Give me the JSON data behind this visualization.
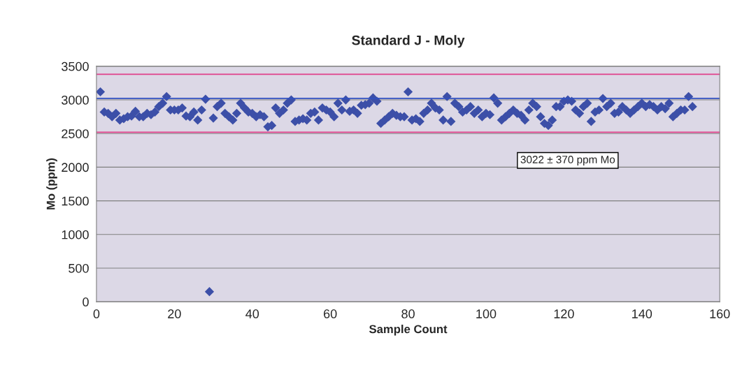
{
  "chart_data": {
    "type": "scatter",
    "title": "Standard J - Moly",
    "xlabel": "Sample Count",
    "ylabel": "Mo (ppm)",
    "x": [
      1,
      2,
      3,
      4,
      5,
      6,
      7,
      8,
      9,
      10,
      11,
      12,
      13,
      14,
      15,
      16,
      17,
      18,
      19,
      20,
      21,
      22,
      23,
      24,
      25,
      26,
      27,
      28,
      29,
      30,
      31,
      32,
      33,
      34,
      35,
      36,
      37,
      38,
      39,
      40,
      41,
      42,
      43,
      44,
      45,
      46,
      47,
      48,
      49,
      50,
      51,
      52,
      53,
      54,
      55,
      56,
      57,
      58,
      59,
      60,
      61,
      62,
      63,
      64,
      65,
      66,
      67,
      68,
      69,
      70,
      71,
      72,
      73,
      74,
      75,
      76,
      77,
      78,
      79,
      80,
      81,
      82,
      83,
      84,
      85,
      86,
      87,
      88,
      89,
      90,
      91,
      92,
      93,
      94,
      95,
      96,
      97,
      98,
      99,
      100,
      101,
      102,
      103,
      104,
      105,
      106,
      107,
      108,
      109,
      110,
      111,
      112,
      113,
      114,
      115,
      116,
      117,
      118,
      119,
      120,
      121,
      122,
      123,
      124,
      125,
      126,
      127,
      128,
      129,
      130,
      131,
      132,
      133,
      134,
      135,
      136,
      137,
      138,
      139,
      140,
      141,
      142,
      143,
      144,
      145,
      146,
      147,
      148,
      149,
      150,
      151,
      152,
      153
    ],
    "series": [
      {
        "color": "#3c4fa8",
        "values": [
          3120,
          2820,
          2800,
          2750,
          2800,
          2700,
          2720,
          2750,
          2760,
          2830,
          2750,
          2750,
          2800,
          2780,
          2820,
          2900,
          2950,
          3050,
          2850,
          2850,
          2850,
          2880,
          2760,
          2750,
          2820,
          2700,
          2850,
          3010,
          150,
          2730,
          2900,
          2950,
          2800,
          2750,
          2700,
          2800,
          2950,
          2880,
          2820,
          2800,
          2750,
          2780,
          2750,
          2600,
          2620,
          2880,
          2800,
          2850,
          2950,
          3000,
          2680,
          2700,
          2720,
          2700,
          2800,
          2820,
          2700,
          2880,
          2850,
          2820,
          2750,
          2950,
          2850,
          3000,
          2830,
          2850,
          2800,
          2920,
          2930,
          2950,
          3030,
          2980,
          2650,
          2700,
          2750,
          2800,
          2770,
          2750,
          2750,
          3120,
          2700,
          2720,
          2680,
          2800,
          2850,
          2950,
          2880,
          2850,
          2700,
          3050,
          2680,
          2950,
          2900,
          2820,
          2850,
          2900,
          2800,
          2850,
          2750,
          2800,
          2780,
          3030,
          2950,
          2700,
          2750,
          2800,
          2850,
          2800,
          2770,
          2700,
          2850,
          2950,
          2900,
          2750,
          2650,
          2620,
          2700,
          2900,
          2900,
          2980,
          3000,
          2980,
          2850,
          2800,
          2900,
          2950,
          2680,
          2820,
          2850,
          3020,
          2900,
          2950,
          2800,
          2820,
          2900,
          2850,
          2800,
          2850,
          2900,
          2950,
          2900,
          2930,
          2900,
          2850,
          2900,
          2870,
          2950,
          2750,
          2800,
          2850,
          2850,
          3050,
          2900
        ]
      }
    ],
    "xlim": [
      0,
      160
    ],
    "xticks": [
      0,
      20,
      40,
      60,
      80,
      100,
      120,
      140,
      160
    ],
    "ylim": [
      0,
      3500
    ],
    "yticks": [
      0,
      500,
      1000,
      1500,
      2000,
      2500,
      3000,
      3500
    ],
    "grid": "y",
    "marker": "diamond",
    "legend": false,
    "ref_lines": [
      {
        "axis": "y",
        "value": 3022,
        "color": "#3050c0"
      },
      {
        "axis": "y",
        "value": 3380,
        "color": "#e0408a"
      },
      {
        "axis": "y",
        "value": 2520,
        "color": "#e0408a"
      }
    ],
    "annotations": [
      "3022 ± 370 ppm Mo"
    ]
  }
}
